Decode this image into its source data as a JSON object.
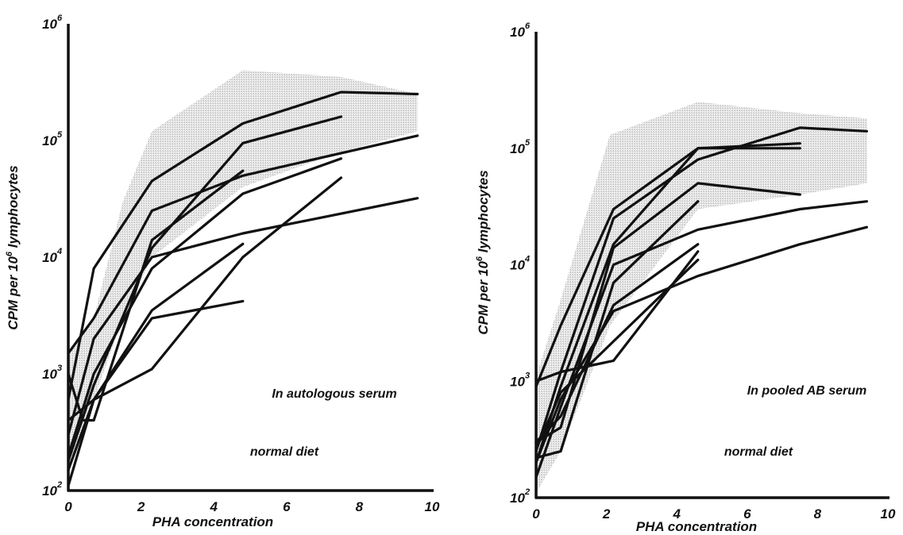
{
  "chart_data": [
    {
      "type": "line",
      "title": "",
      "xlabel": "PHA concentration",
      "ylabel": "CPM per 10^6 lymphocytes",
      "ylabel_parts": {
        "pre": "CPM per 10",
        "sup": "6",
        "post": " lymphocytes"
      },
      "xlim": [
        0,
        10
      ],
      "ylim": [
        100,
        1000000
      ],
      "yscale": "log",
      "grid": false,
      "x_ticks": [
        "0",
        "2",
        "4",
        "6",
        "8",
        "10"
      ],
      "y_ticks": [
        {
          "base": "10",
          "exp": "2"
        },
        {
          "base": "10",
          "exp": "3"
        },
        {
          "base": "10",
          "exp": "4"
        },
        {
          "base": "10",
          "exp": "5"
        },
        {
          "base": "10",
          "exp": "6"
        }
      ],
      "annotations": [
        "In autologous serum",
        "normal diet"
      ],
      "shaded_color": "#d2d2d2",
      "line_color": "#111111",
      "shaded_band": {
        "upper": [
          [
            0,
            1500
          ],
          [
            0.7,
            3000
          ],
          [
            1.5,
            30000
          ],
          [
            2.3,
            120000
          ],
          [
            4.8,
            400000
          ],
          [
            7.5,
            350000
          ],
          [
            9.6,
            250000
          ]
        ],
        "lower": [
          [
            9.6,
            120000
          ],
          [
            7.5,
            80000
          ],
          [
            4.8,
            40000
          ],
          [
            2.3,
            10000
          ],
          [
            1.5,
            3000
          ],
          [
            0.7,
            600
          ],
          [
            0,
            150
          ]
        ]
      },
      "series": [
        {
          "points": [
            [
              0,
              600
            ],
            [
              0.7,
              8000
            ],
            [
              2.3,
              45000
            ],
            [
              4.8,
              140000
            ],
            [
              7.5,
              260000
            ],
            [
              9.6,
              250000
            ]
          ]
        },
        {
          "points": [
            [
              0,
              1500
            ],
            [
              0.7,
              3000
            ],
            [
              2.3,
              25000
            ],
            [
              4.8,
              50000
            ],
            [
              9.6,
              110000
            ]
          ]
        },
        {
          "points": [
            [
              0,
              180
            ],
            [
              0.7,
              800
            ],
            [
              2.3,
              12000
            ],
            [
              4.8,
              95000
            ],
            [
              7.5,
              160000
            ]
          ]
        },
        {
          "points": [
            [
              0,
              1000
            ],
            [
              0.4,
              400
            ],
            [
              0.7,
              400
            ],
            [
              2.3,
              14000
            ],
            [
              4.8,
              55000
            ]
          ]
        },
        {
          "points": [
            [
              0,
              200
            ],
            [
              0.7,
              1000
            ],
            [
              2.3,
              8000
            ],
            [
              4.8,
              35000
            ],
            [
              7.5,
              70000
            ]
          ]
        },
        {
          "points": [
            [
              0,
              300
            ],
            [
              0.7,
              2000
            ],
            [
              2.3,
              10000
            ],
            [
              4.8,
              16000
            ],
            [
              9.6,
              32000
            ]
          ]
        },
        {
          "points": [
            [
              0,
              400
            ],
            [
              0.7,
              600
            ],
            [
              2.3,
              1100
            ],
            [
              4.8,
              10000
            ],
            [
              7.5,
              48000
            ]
          ]
        },
        {
          "points": [
            [
              0,
              150
            ],
            [
              0.7,
              600
            ],
            [
              2.3,
              3500
            ],
            [
              4.8,
              13000
            ]
          ]
        },
        {
          "points": [
            [
              0,
              110
            ],
            [
              0.7,
              600
            ],
            [
              2.3,
              3000
            ],
            [
              4.8,
              4200
            ]
          ]
        }
      ]
    },
    {
      "type": "line",
      "title": "",
      "xlabel": "PHA concentration",
      "ylabel": "CPM per 10^6 lymphocytes",
      "ylabel_parts": {
        "pre": "CPM per 10",
        "sup": "6",
        "post": " lymphocytes"
      },
      "xlim": [
        0,
        10
      ],
      "ylim": [
        100,
        1000000
      ],
      "yscale": "log",
      "grid": false,
      "x_ticks": [
        "0",
        "2",
        "4",
        "6",
        "8",
        "10"
      ],
      "y_ticks": [
        {
          "base": "10",
          "exp": "2"
        },
        {
          "base": "10",
          "exp": "3"
        },
        {
          "base": "10",
          "exp": "4"
        },
        {
          "base": "10",
          "exp": "5"
        },
        {
          "base": "10",
          "exp": "6"
        }
      ],
      "annotations": [
        "In pooled AB serum",
        "normal diet"
      ],
      "shaded_color": "#d2d2d2",
      "line_color": "#111111",
      "shaded_band": {
        "upper": [
          [
            0,
            1100
          ],
          [
            0.7,
            5000
          ],
          [
            2.1,
            130000
          ],
          [
            4.6,
            250000
          ],
          [
            7.5,
            200000
          ],
          [
            9.4,
            180000
          ]
        ],
        "lower": [
          [
            9.4,
            50000
          ],
          [
            7.5,
            40000
          ],
          [
            4.6,
            30000
          ],
          [
            2.1,
            3000
          ],
          [
            0.7,
            250
          ],
          [
            0,
            110
          ]
        ]
      },
      "series": [
        {
          "points": [
            [
              0,
              900
            ],
            [
              0.7,
              3000
            ],
            [
              2.2,
              30000
            ],
            [
              4.6,
              100000
            ],
            [
              7.5,
              100000
            ]
          ]
        },
        {
          "points": [
            [
              0,
              250
            ],
            [
              0.7,
              1200
            ],
            [
              2.2,
              25000
            ],
            [
              4.6,
              80000
            ],
            [
              7.5,
              150000
            ],
            [
              9.4,
              140000
            ]
          ]
        },
        {
          "points": [
            [
              0,
              200
            ],
            [
              0.7,
              900
            ],
            [
              2.2,
              15000
            ],
            [
              4.6,
              100000
            ],
            [
              7.5,
              110000
            ]
          ]
        },
        {
          "points": [
            [
              0,
              300
            ],
            [
              0.7,
              400
            ],
            [
              2.2,
              14000
            ],
            [
              4.6,
              50000
            ],
            [
              7.5,
              40000
            ]
          ]
        },
        {
          "points": [
            [
              0,
              150
            ],
            [
              0.7,
              600
            ],
            [
              2.2,
              10000
            ],
            [
              4.6,
              20000
            ],
            [
              7.5,
              30000
            ],
            [
              9.4,
              35000
            ]
          ]
        },
        {
          "points": [
            [
              0,
              1000
            ],
            [
              0.7,
              1200
            ],
            [
              2.2,
              1500
            ],
            [
              4.6,
              13000
            ]
          ]
        },
        {
          "points": [
            [
              0,
              220
            ],
            [
              0.7,
              250
            ],
            [
              2.2,
              7000
            ],
            [
              4.6,
              35000
            ]
          ]
        },
        {
          "points": [
            [
              0,
              200
            ],
            [
              0.7,
              700
            ],
            [
              2.2,
              4000
            ],
            [
              4.6,
              8000
            ],
            [
              7.5,
              15000
            ],
            [
              9.4,
              21000
            ]
          ]
        },
        {
          "points": [
            [
              0,
              260
            ],
            [
              0.7,
              800
            ],
            [
              2.2,
              2200
            ],
            [
              4.6,
              11000
            ]
          ]
        },
        {
          "points": [
            [
              0,
              300
            ],
            [
              0.7,
              500
            ],
            [
              2.2,
              4500
            ],
            [
              4.6,
              15000
            ]
          ]
        }
      ]
    }
  ]
}
